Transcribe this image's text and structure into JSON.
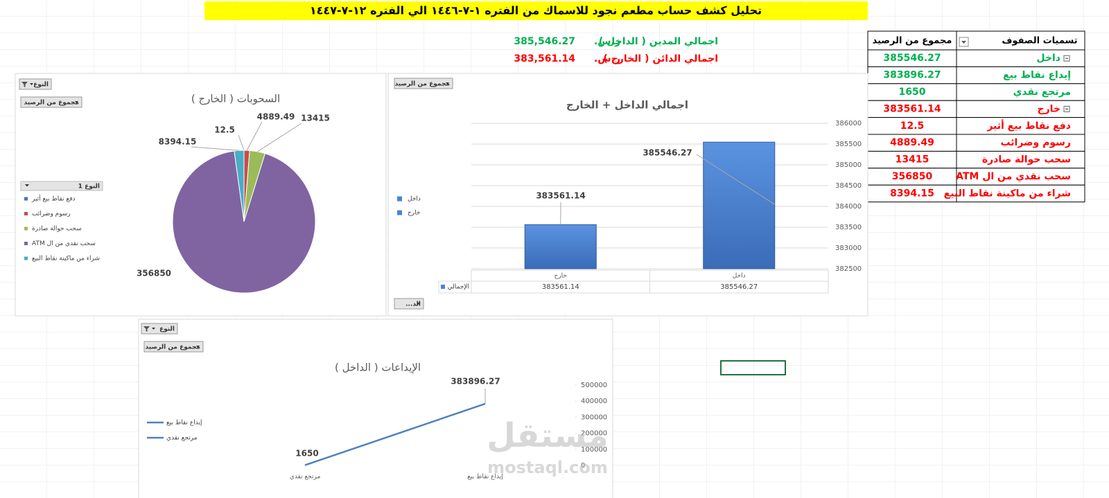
{
  "header": {
    "title": "تحليل كشف حساب مطعم نجود للاسماك من الفتره ١-٧-١٤٤٦ الي الفتره ١٢-٧-١٤٤٧"
  },
  "summary": [
    {
      "label": "اجمالي المدين ( الداخل )",
      "currency": "ر.س.",
      "amount": "385,546.27",
      "color": "#00b050"
    },
    {
      "label": "اجمالي الدائن ( الخارج )",
      "currency": "ر.س.",
      "amount": "383,561.14",
      "color": "#ff0000"
    }
  ],
  "pivot_table": {
    "headers": [
      "تسميات الصفوف",
      "مجموع من الرصيد"
    ],
    "rows": [
      {
        "label": "داخل",
        "value": 385546.27,
        "color": "#00b050",
        "expanded": true
      },
      {
        "label": "إيداع نقاط بيع",
        "value": 383896.27,
        "color": "#00b050"
      },
      {
        "label": "مرتجع نقدي",
        "value": 1650,
        "color": "#00b050"
      },
      {
        "label": "خارج",
        "value": 383561.14,
        "color": "#ff0000",
        "expanded": true
      },
      {
        "label": "دفع نقاط بيع أثير",
        "value": 12.5,
        "color": "#ff0000"
      },
      {
        "label": "رسوم وضرائب",
        "value": 4889.49,
        "color": "#ff0000"
      },
      {
        "label": "سحب حوالة صادرة",
        "value": 13415,
        "color": "#ff0000"
      },
      {
        "label": "سحب نقدي من ال ATM",
        "value": 356850,
        "color": "#ff0000"
      },
      {
        "label": "شراء من ماكينة نقاط البيع",
        "value": 8394.15,
        "color": "#ff0000"
      }
    ]
  },
  "chart_data": [
    {
      "type": "pie",
      "title": "السحوبات ( الخارج )",
      "filter_button": "النوع",
      "value_button": "مجموع من الرصيد",
      "legend_title": "النوع 1",
      "categories": [
        "دفع نقاط بيع أثير",
        "رسوم وضرائب",
        "سحب حوالة صادرة",
        "سحب نقدي من ال ATM",
        "شراء من ماكينة نقاط البيع"
      ],
      "values": [
        12.5,
        4889.49,
        13415,
        356850,
        8394.15
      ],
      "colors": [
        "#4472c4",
        "#c0504d",
        "#9bbb59",
        "#8064a2",
        "#4bacc6"
      ]
    },
    {
      "type": "bar",
      "title": "اجمالي الداخل + الخارج",
      "value_button": "مجموع من الرصيد",
      "axis_button": "الد...",
      "series_name": "الإجمالي",
      "categories": [
        "خارج",
        "داخل"
      ],
      "values": [
        383561.14,
        385546.27
      ],
      "color": "#4a84d4",
      "ylim": [
        382500,
        386000
      ],
      "yticks": [
        382500,
        383000,
        383500,
        384000,
        384500,
        385000,
        385500,
        386000
      ],
      "grid": true
    },
    {
      "type": "line",
      "title": "الإيداعات ( الداخل )",
      "filter_button": "النوع",
      "value_button": "مجموع من الرصيد",
      "categories": [
        "مرتجع نقدي",
        "إيداع نقاط بيع"
      ],
      "values": [
        1650,
        383896.27
      ],
      "color": "#4f81bd",
      "ylim": [
        0,
        500000
      ],
      "yticks": [
        0,
        100000,
        200000,
        300000,
        400000,
        500000
      ],
      "grid": false
    }
  ],
  "watermark": {
    "brand": "مستقل",
    "url": "mostaql.com"
  }
}
